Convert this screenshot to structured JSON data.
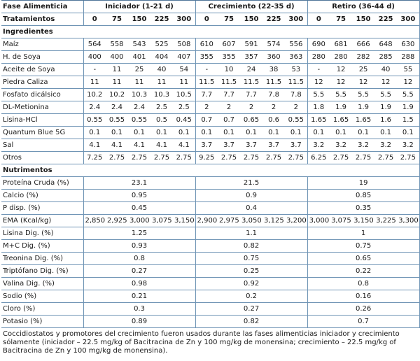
{
  "header": {
    "phase_label": "Fase Alimenticia",
    "phases": [
      "Iniciador (1-21 d)",
      "Crecimiento (22-35 d)",
      "Retiro (36-44 d)"
    ],
    "treatments_label": "Tratamientos",
    "treatments": [
      "0",
      "75",
      "150",
      "225",
      "300"
    ]
  },
  "ingredients_title": "Ingredientes",
  "ingredients": [
    {
      "name": "Maíz",
      "values": [
        "564",
        "558",
        "543",
        "525",
        "508",
        "610",
        "607",
        "591",
        "574",
        "556",
        "690",
        "681",
        "666",
        "648",
        "630"
      ]
    },
    {
      "name": "H. de Soya",
      "values": [
        "400",
        "400",
        "401",
        "404",
        "407",
        "355",
        "355",
        "357",
        "360",
        "363",
        "280",
        "280",
        "282",
        "285",
        "288"
      ]
    },
    {
      "name": "Aceite de Soya",
      "values": [
        "-",
        "11",
        "25",
        "40",
        "54",
        "-",
        "10",
        "24",
        "38",
        "53",
        "-",
        "12",
        "25",
        "40",
        "55"
      ]
    },
    {
      "name": "Piedra Caliza",
      "values": [
        "11",
        "11",
        "11",
        "11",
        "11",
        "11.5",
        "11.5",
        "11.5",
        "11.5",
        "11.5",
        "12",
        "12",
        "12",
        "12",
        "12"
      ]
    },
    {
      "name": "Fosfato dicálsico",
      "values": [
        "10.2",
        "10.2",
        "10.3",
        "10.3",
        "10.5",
        "7.7",
        "7.7",
        "7.7",
        "7.8",
        "7.8",
        "5.5",
        "5.5",
        "5.5",
        "5.5",
        "5.5"
      ]
    },
    {
      "name": "DL-Metionina",
      "values": [
        "2.4",
        "2.4",
        "2.4",
        "2.5",
        "2.5",
        "2",
        "2",
        "2",
        "2",
        "2",
        "1.8",
        "1.9",
        "1.9",
        "1.9",
        "1.9"
      ]
    },
    {
      "name": "Lisina-HCl",
      "values": [
        "0.55",
        "0.55",
        "0.55",
        "0.5",
        "0.45",
        "0.7",
        "0.7",
        "0.65",
        "0.6",
        "0.55",
        "1.65",
        "1.65",
        "1.65",
        "1.6",
        "1.5"
      ]
    },
    {
      "name": "Quantum Blue 5G",
      "values": [
        "0.1",
        "0.1",
        "0.1",
        "0.1",
        "0.1",
        "0.1",
        "0.1",
        "0.1",
        "0.1",
        "0.1",
        "0.1",
        "0.1",
        "0.1",
        "0.1",
        "0.1"
      ]
    },
    {
      "name": "Sal",
      "values": [
        "4.1",
        "4.1",
        "4.1",
        "4.1",
        "4.1",
        "3.7",
        "3.7",
        "3.7",
        "3.7",
        "3.7",
        "3.2",
        "3.2",
        "3.2",
        "3.2",
        "3.2"
      ]
    },
    {
      "name": "Otros",
      "values": [
        "7.25",
        "2.75",
        "2.75",
        "2.75",
        "2.75",
        "9.25",
        "2.75",
        "2.75",
        "2.75",
        "2.75",
        "6.25",
        "2.75",
        "2.75",
        "2.75",
        "2.75"
      ]
    }
  ],
  "nutrients_title": "Nutrimentos",
  "nutrients_before_ema": [
    {
      "name": "Proteína Cruda (%)",
      "values": [
        "23.1",
        "21.5",
        "19"
      ]
    },
    {
      "name": "Calcio (%)",
      "values": [
        "0.95",
        "0.9",
        "0.85"
      ]
    },
    {
      "name": "P disp. (%)",
      "values": [
        "0.45",
        "0.4",
        "0.35"
      ]
    }
  ],
  "ema": {
    "name": "EMA (Kcal/kg)",
    "values": [
      "2,850",
      "2,925",
      "3,000",
      "3,075",
      "3,150",
      "2,900",
      "2,975",
      "3,050",
      "3,125",
      "3,200",
      "3,000",
      "3,075",
      "3,150",
      "3,225",
      "3,300"
    ]
  },
  "nutrients_after_ema": [
    {
      "name": "Lisina Dig. (%)",
      "values": [
        "1.25",
        "1.1",
        "1"
      ]
    },
    {
      "name": "M+C Dig. (%)",
      "values": [
        "0.93",
        "0.82",
        "0.75"
      ]
    },
    {
      "name": "Treonina Dig. (%)",
      "values": [
        "0.8",
        "0.75",
        "0.65"
      ]
    },
    {
      "name": "Triptófano Dig. (%)",
      "values": [
        "0.27",
        "0.25",
        "0.22"
      ]
    },
    {
      "name": "Valina Dig. (%)",
      "values": [
        "0.98",
        "0.92",
        "0.8"
      ]
    },
    {
      "name": "Sodio (%)",
      "values": [
        "0.21",
        "0.2",
        "0.16"
      ]
    },
    {
      "name": "Cloro (%)",
      "values": [
        "0.3",
        "0.27",
        "0.26"
      ]
    },
    {
      "name": "Potasio (%)",
      "values": [
        "0.89",
        "0.82",
        "0.7"
      ]
    }
  ],
  "footnote": "Coccidiostatos y promotores del crecimiento fueron usados durante las fases alimenticias iniciador y crecimiento sólamente (iniciador – 22.5 mg/kg of Bacitracina de Zn y 100 mg/kg de monensina; crecimiento – 22.5 mg/kg of Bacitracina de Zn y 100 mg/kg de monensina)."
}
